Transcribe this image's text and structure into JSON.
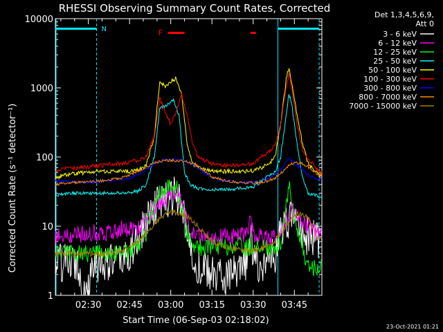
{
  "chart_data": {
    "type": "line",
    "title": "RHESSI Observing Summary Count Rates, Corrected",
    "xlabel": "Start Time (06-Sep-03 02:18:02)",
    "ylabel": "Corrected Count Rate (s⁻¹ detector⁻¹)",
    "y_scale": "log",
    "ylim": [
      1,
      10000
    ],
    "xlim": [
      "02:18",
      "03:55"
    ],
    "x_ticks": [
      "02:30",
      "02:45",
      "03:00",
      "03:15",
      "03:30",
      "03:45"
    ],
    "y_ticks": [
      {
        "value": 1,
        "label": "1"
      },
      {
        "value": 10,
        "label": "10"
      },
      {
        "value": 100,
        "label": "100"
      },
      {
        "value": 1000,
        "label": "1000"
      },
      {
        "value": 10000,
        "label": "10000"
      }
    ],
    "legend_header": [
      "Det 1,3,4,5,6,9,",
      "Att 0"
    ],
    "legend_position": "right",
    "footer": "23-Oct-2021 01:21",
    "night_marker": {
      "label": "N",
      "start": "02:18",
      "end": "02:33"
    },
    "night_marker_2": {
      "start": "03:39",
      "end": "03:54"
    },
    "flare_marker": {
      "label": "F",
      "segments": [
        [
          "02:59",
          "03:05"
        ],
        [
          "03:29",
          "03:31"
        ]
      ]
    },
    "series": [
      {
        "name": "3 - 6 keV",
        "color": "#ffffff",
        "x": [
          "02:18",
          "02:22",
          "02:26",
          "02:28",
          "02:30",
          "02:32",
          "02:34",
          "02:38",
          "02:42",
          "02:45",
          "02:48",
          "02:51",
          "02:54",
          "02:57",
          "03:00",
          "03:02",
          "03:05",
          "03:07",
          "03:10",
          "03:15",
          "03:20",
          "03:25",
          "03:28",
          "03:29",
          "03:30",
          "03:32",
          "03:35",
          "03:38",
          "03:40",
          "03:42",
          "03:44",
          "03:46",
          "03:48",
          "03:50",
          "03:52",
          "03:54"
        ],
        "values": [
          3,
          3,
          3,
          1.2,
          1.5,
          2.5,
          3,
          3,
          3,
          4,
          6,
          12,
          20,
          22,
          25,
          30,
          12,
          5,
          2.5,
          2,
          2,
          2,
          3,
          9,
          4,
          2.5,
          3,
          4,
          8,
          10,
          15,
          10,
          8,
          7,
          6.5,
          6
        ]
      },
      {
        "name": "6 - 12 keV",
        "color": "#ff00ff",
        "x": [
          "02:18",
          "02:22",
          "02:26",
          "02:30",
          "02:34",
          "02:38",
          "02:42",
          "02:45",
          "02:48",
          "02:51",
          "02:54",
          "02:57",
          "03:00",
          "03:02",
          "03:05",
          "03:07",
          "03:10",
          "03:15",
          "03:20",
          "03:25",
          "03:28",
          "03:29",
          "03:30",
          "03:32",
          "03:35",
          "03:38",
          "03:40",
          "03:42",
          "03:44",
          "03:46",
          "03:48",
          "03:50",
          "03:52",
          "03:54"
        ],
        "values": [
          7,
          7,
          7.5,
          8,
          8,
          8.5,
          9,
          9,
          9.5,
          11,
          18,
          25,
          28,
          32,
          15,
          8,
          7.5,
          7,
          7,
          7,
          8,
          12,
          8,
          7,
          7,
          7.5,
          8,
          12,
          18,
          14,
          12,
          10,
          9,
          8
        ]
      },
      {
        "name": "12 - 25 keV",
        "color": "#00ff00",
        "x": [
          "02:18",
          "02:22",
          "02:26",
          "02:30",
          "02:34",
          "02:38",
          "02:42",
          "02:45",
          "02:48",
          "02:51",
          "02:54",
          "02:57",
          "03:00",
          "03:02",
          "03:05",
          "03:07",
          "03:10",
          "03:15",
          "03:20",
          "03:25",
          "03:28",
          "03:30",
          "03:32",
          "03:35",
          "03:38",
          "03:40",
          "03:42",
          "03:43",
          "03:44",
          "03:46",
          "03:48",
          "03:50",
          "03:52",
          "03:54"
        ],
        "values": [
          4,
          4,
          4,
          4,
          4,
          4,
          4,
          4,
          5,
          8,
          22,
          35,
          35,
          38,
          12,
          6,
          5,
          5,
          5,
          5,
          5,
          5,
          5,
          5,
          5,
          6,
          20,
          40,
          25,
          8,
          5,
          2.5,
          2.5,
          2.5
        ]
      },
      {
        "name": "25 - 50 keV",
        "color": "#00ffff",
        "x": [
          "02:18",
          "02:22",
          "02:26",
          "02:30",
          "02:34",
          "02:38",
          "02:42",
          "02:45",
          "02:48",
          "02:51",
          "02:54",
          "02:56",
          "02:59",
          "03:01",
          "03:03",
          "03:05",
          "03:07",
          "03:10",
          "03:15",
          "03:20",
          "03:25",
          "03:30",
          "03:33",
          "03:36",
          "03:38",
          "03:40",
          "03:42",
          "03:43",
          "03:44",
          "03:46",
          "03:48",
          "03:50",
          "03:52",
          "03:54"
        ],
        "values": [
          28,
          30,
          30,
          30,
          30,
          30,
          30,
          31,
          32,
          40,
          100,
          500,
          580,
          650,
          400,
          60,
          40,
          35,
          34,
          34,
          35,
          37,
          45,
          55,
          60,
          100,
          400,
          820,
          600,
          150,
          50,
          30,
          28,
          27
        ]
      },
      {
        "name": "50 - 100 keV",
        "color": "#ffff00",
        "x": [
          "02:18",
          "02:22",
          "02:26",
          "02:30",
          "02:34",
          "02:38",
          "02:42",
          "02:45",
          "02:48",
          "02:51",
          "02:54",
          "02:56",
          "02:58",
          "03:00",
          "03:02",
          "03:04",
          "03:06",
          "03:08",
          "03:10",
          "03:15",
          "03:20",
          "03:25",
          "03:30",
          "03:33",
          "03:36",
          "03:38",
          "03:40",
          "03:42",
          "03:43",
          "03:44",
          "03:46",
          "03:48",
          "03:50",
          "03:52",
          "03:54"
        ],
        "values": [
          50,
          55,
          58,
          60,
          62,
          62,
          62,
          62,
          65,
          75,
          200,
          1250,
          1050,
          1250,
          1350,
          800,
          150,
          80,
          70,
          62,
          62,
          62,
          63,
          70,
          80,
          100,
          300,
          1300,
          2000,
          1200,
          400,
          150,
          80,
          65,
          55
        ]
      },
      {
        "name": "100 - 300 keV",
        "color": "#ff0000",
        "x": [
          "02:18",
          "02:22",
          "02:26",
          "02:30",
          "02:34",
          "02:38",
          "02:42",
          "02:45",
          "02:48",
          "02:51",
          "02:54",
          "02:56",
          "02:58",
          "03:00",
          "03:02",
          "03:04",
          "03:06",
          "03:08",
          "03:10",
          "03:15",
          "03:20",
          "03:25",
          "03:30",
          "03:33",
          "03:36",
          "03:38",
          "03:40",
          "03:42",
          "03:43",
          "03:44",
          "03:46",
          "03:48",
          "03:50",
          "03:52",
          "03:54"
        ],
        "values": [
          65,
          68,
          70,
          72,
          75,
          78,
          80,
          85,
          90,
          100,
          200,
          700,
          450,
          300,
          450,
          800,
          400,
          150,
          100,
          80,
          75,
          75,
          80,
          100,
          120,
          150,
          300,
          1000,
          1600,
          1000,
          300,
          120,
          90,
          80,
          60
        ]
      },
      {
        "name": "300 - 800 keV",
        "color": "#0000ff",
        "x": [
          "02:18",
          "02:22",
          "02:26",
          "02:30",
          "02:34",
          "02:38",
          "02:42",
          "02:45",
          "02:48",
          "02:51",
          "02:54",
          "02:57",
          "03:00",
          "03:03",
          "03:06",
          "03:09",
          "03:12",
          "03:15",
          "03:20",
          "03:25",
          "03:30",
          "03:35",
          "03:38",
          "03:40",
          "03:42",
          "03:43",
          "03:44",
          "03:46",
          "03:48",
          "03:50",
          "03:52",
          "03:54"
        ],
        "values": [
          45,
          44,
          43,
          43,
          44,
          45,
          47,
          50,
          55,
          65,
          80,
          90,
          92,
          90,
          85,
          75,
          60,
          50,
          45,
          43,
          43,
          48,
          55,
          65,
          85,
          95,
          90,
          75,
          65,
          55,
          50,
          48
        ]
      },
      {
        "name": "800 - 7000 keV",
        "color": "#ff8c00",
        "x": [
          "02:18",
          "02:22",
          "02:26",
          "02:30",
          "02:34",
          "02:38",
          "02:42",
          "02:45",
          "02:48",
          "02:51",
          "02:54",
          "02:57",
          "03:00",
          "03:03",
          "03:06",
          "03:09",
          "03:12",
          "03:15",
          "03:20",
          "03:25",
          "03:30",
          "03:35",
          "03:38",
          "03:40",
          "03:42",
          "03:44",
          "03:46",
          "03:48",
          "03:50",
          "03:52",
          "03:54"
        ],
        "values": [
          40,
          42,
          43,
          44,
          45,
          47,
          50,
          55,
          62,
          72,
          82,
          88,
          90,
          88,
          85,
          78,
          65,
          52,
          45,
          43,
          42,
          45,
          50,
          58,
          70,
          80,
          82,
          80,
          72,
          62,
          55
        ]
      },
      {
        "name": "7000 - 15000 keV",
        "color": "#a08200",
        "x": [
          "02:18",
          "02:22",
          "02:26",
          "02:30",
          "02:34",
          "02:38",
          "02:42",
          "02:45",
          "02:48",
          "02:51",
          "02:54",
          "02:57",
          "03:00",
          "03:03",
          "03:06",
          "03:09",
          "03:12",
          "03:15",
          "03:20",
          "03:25",
          "03:30",
          "03:35",
          "03:38",
          "03:40",
          "03:42",
          "03:44",
          "03:46",
          "03:48",
          "03:50",
          "03:52",
          "03:54"
        ],
        "values": [
          4,
          4,
          4,
          4,
          4,
          4,
          4.5,
          5,
          6,
          8,
          11,
          14,
          16,
          15,
          14,
          11,
          8,
          6,
          5,
          4.5,
          4.5,
          5,
          6,
          8,
          10,
          13,
          15,
          15,
          13,
          9,
          6.5
        ]
      }
    ]
  }
}
